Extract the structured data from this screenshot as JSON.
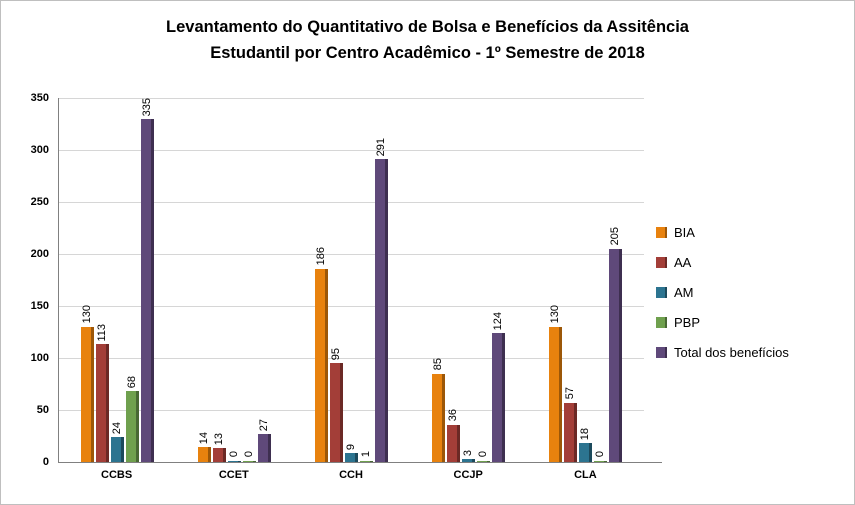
{
  "title": {
    "line1": "Levantamento do Quantitativo de Bolsa e Benefícios da Assitência",
    "line2": "Estudantil  por Centro Acadêmico - 1º Semestre de 2018"
  },
  "chart_data": {
    "type": "bar",
    "title": "Levantamento do Quantitativo de Bolsa e Benefícios da Assitência Estudantil por Centro Acadêmico - 1º Semestre de 2018",
    "categories": [
      "CCBS",
      "CCET",
      "CCH",
      "CCJP",
      "CLA"
    ],
    "series": [
      {
        "name": "BIA",
        "color": "#E8820E",
        "color_dark": "#9C5708",
        "values": [
          130,
          14,
          186,
          85,
          130
        ]
      },
      {
        "name": "AA",
        "color": "#A33E38",
        "color_dark": "#6B2925",
        "values": [
          113,
          13,
          95,
          36,
          57
        ]
      },
      {
        "name": "AM",
        "color": "#2C7490",
        "color_dark": "#1C4A5C",
        "values": [
          24,
          0,
          9,
          3,
          18
        ]
      },
      {
        "name": "PBP",
        "color": "#6FA04E",
        "color_dark": "#486834",
        "values": [
          68,
          0,
          1,
          0,
          0
        ]
      },
      {
        "name": "Total dos benefícios",
        "color": "#5F497A",
        "color_dark": "#3E2F50",
        "values": [
          335,
          27,
          291,
          124,
          205
        ]
      }
    ],
    "ylim": [
      0,
      350
    ],
    "ytick_step": 50,
    "yticks": [
      0,
      50,
      100,
      150,
      200,
      250,
      300,
      350
    ],
    "grid": true,
    "data_labels": true,
    "data_label_orientation": "vertical",
    "legend_position": "right",
    "axis_color": "#808080",
    "gridline_color": "#d6d6d6",
    "background_color": "#ffffff"
  }
}
